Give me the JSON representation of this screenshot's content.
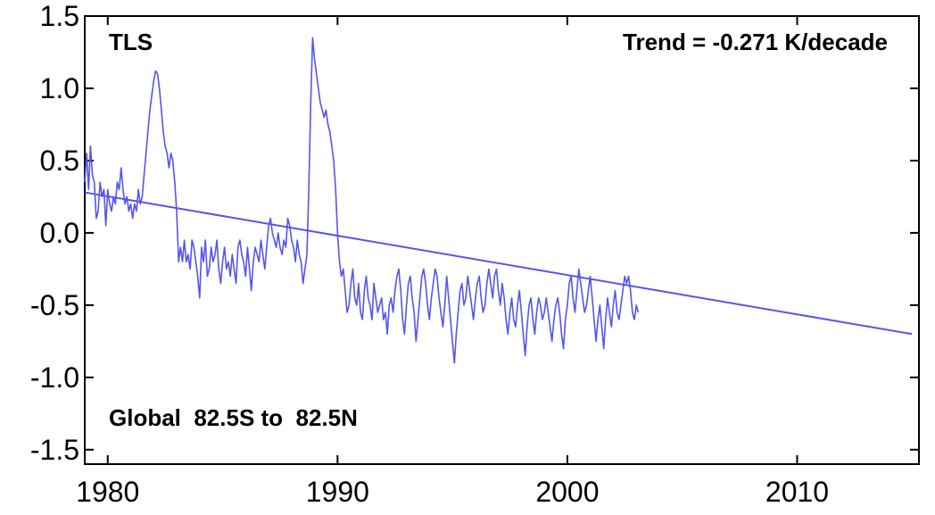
{
  "chart_data": {
    "type": "line",
    "title": "TLS",
    "subtitle": "Global  82.5S to  82.5N",
    "trend_label": "Trend = -0.271 K/decade",
    "xlabel": "",
    "ylabel": "",
    "xlim": [
      1979,
      2015.3
    ],
    "ylim": [
      -1.6,
      1.5
    ],
    "x_ticks": [
      1980,
      1990,
      2000,
      2010
    ],
    "x_tick_labels": [
      "1980",
      "1990",
      "2000",
      "2010"
    ],
    "y_ticks": [
      1.5,
      1.0,
      0.5,
      0.0,
      -0.5,
      -1.0,
      -1.5
    ],
    "y_tick_labels": [
      "1.5",
      "1.0",
      "0.5",
      "0.0",
      "-0.5",
      "-1.0",
      "-1.5"
    ],
    "grid": false,
    "colors": {
      "series": "#5555ee",
      "trend_text": "#5555ee",
      "axes": "#000000"
    },
    "series": [
      {
        "values_x_start": 1979.0,
        "values_x_step_years": 0.08333,
        "values": [
          0.35,
          0.55,
          0.3,
          0.6,
          0.4,
          0.35,
          0.1,
          0.15,
          0.35,
          0.25,
          0.3,
          0.05,
          0.3,
          0.2,
          0.15,
          0.25,
          0.2,
          0.35,
          0.3,
          0.45,
          0.3,
          0.2,
          0.25,
          0.15,
          0.2,
          0.1,
          0.2,
          0.15,
          0.3,
          0.2,
          0.25,
          0.4,
          0.55,
          0.7,
          0.85,
          0.95,
          1.05,
          1.12,
          1.1,
          1.0,
          0.85,
          0.7,
          0.6,
          0.55,
          0.45,
          0.55,
          0.5,
          0.35,
          0.15,
          -0.2,
          -0.1,
          -0.2,
          -0.05,
          -0.2,
          -0.15,
          -0.25,
          -0.05,
          -0.1,
          -0.2,
          -0.3,
          -0.45,
          -0.1,
          -0.2,
          -0.05,
          -0.3,
          -0.25,
          -0.1,
          -0.2,
          -0.15,
          -0.05,
          -0.25,
          -0.35,
          -0.2,
          -0.1,
          -0.25,
          -0.2,
          -0.3,
          -0.15,
          -0.25,
          -0.35,
          -0.1,
          -0.05,
          -0.15,
          -0.2,
          -0.3,
          -0.1,
          -0.25,
          -0.4,
          -0.2,
          -0.1,
          -0.15,
          -0.2,
          -0.05,
          -0.15,
          -0.25,
          -0.1,
          0.05,
          0.1,
          0.0,
          -0.05,
          -0.1,
          0.0,
          -0.1,
          -0.15,
          -0.05,
          -0.1,
          0.1,
          0.05,
          -0.05,
          -0.1,
          -0.2,
          -0.05,
          -0.15,
          -0.2,
          -0.35,
          -0.25,
          -0.15,
          0.3,
          0.9,
          1.35,
          1.2,
          1.1,
          1.0,
          0.9,
          0.85,
          0.8,
          0.85,
          0.75,
          0.7,
          0.6,
          0.5,
          0.3,
          0.0,
          -0.2,
          -0.3,
          -0.25,
          -0.4,
          -0.55,
          -0.5,
          -0.35,
          -0.25,
          -0.45,
          -0.5,
          -0.35,
          -0.55,
          -0.6,
          -0.4,
          -0.3,
          -0.45,
          -0.5,
          -0.6,
          -0.35,
          -0.45,
          -0.55,
          -0.5,
          -0.45,
          -0.6,
          -0.55,
          -0.7,
          -0.5,
          -0.45,
          -0.55,
          -0.4,
          -0.3,
          -0.25,
          -0.4,
          -0.6,
          -0.7,
          -0.5,
          -0.35,
          -0.3,
          -0.45,
          -0.55,
          -0.75,
          -0.6,
          -0.45,
          -0.3,
          -0.25,
          -0.35,
          -0.5,
          -0.6,
          -0.45,
          -0.35,
          -0.25,
          -0.3,
          -0.45,
          -0.55,
          -0.65,
          -0.5,
          -0.3,
          -0.45,
          -0.6,
          -0.75,
          -0.9,
          -0.7,
          -0.55,
          -0.4,
          -0.35,
          -0.5,
          -0.45,
          -0.3,
          -0.4,
          -0.5,
          -0.6,
          -0.45,
          -0.35,
          -0.3,
          -0.45,
          -0.55,
          -0.5,
          -0.35,
          -0.25,
          -0.35,
          -0.45,
          -0.3,
          -0.25,
          -0.4,
          -0.5,
          -0.35,
          -0.45,
          -0.6,
          -0.7,
          -0.55,
          -0.45,
          -0.6,
          -0.65,
          -0.5,
          -0.4,
          -0.55,
          -0.7,
          -0.85,
          -0.65,
          -0.5,
          -0.45,
          -0.6,
          -0.7,
          -0.55,
          -0.45,
          -0.5,
          -0.6,
          -0.55,
          -0.45,
          -0.55,
          -0.65,
          -0.75,
          -0.6,
          -0.5,
          -0.45,
          -0.55,
          -0.7,
          -0.8,
          -0.6,
          -0.5,
          -0.35,
          -0.3,
          -0.45,
          -0.55,
          -0.4,
          -0.25,
          -0.35,
          -0.45,
          -0.55,
          -0.5,
          -0.4,
          -0.3,
          -0.45,
          -0.6,
          -0.75,
          -0.6,
          -0.5,
          -0.65,
          -0.8,
          -0.6,
          -0.45,
          -0.55,
          -0.65,
          -0.5,
          -0.4,
          -0.55,
          -0.6,
          -0.5,
          -0.4,
          -0.3,
          -0.35,
          -0.3,
          -0.4,
          -0.55,
          -0.6,
          -0.5,
          -0.55
        ]
      },
      {
        "kind": "linear-trend",
        "x": [
          1979,
          2015
        ],
        "values": [
          0.28,
          -0.7
        ]
      }
    ]
  }
}
